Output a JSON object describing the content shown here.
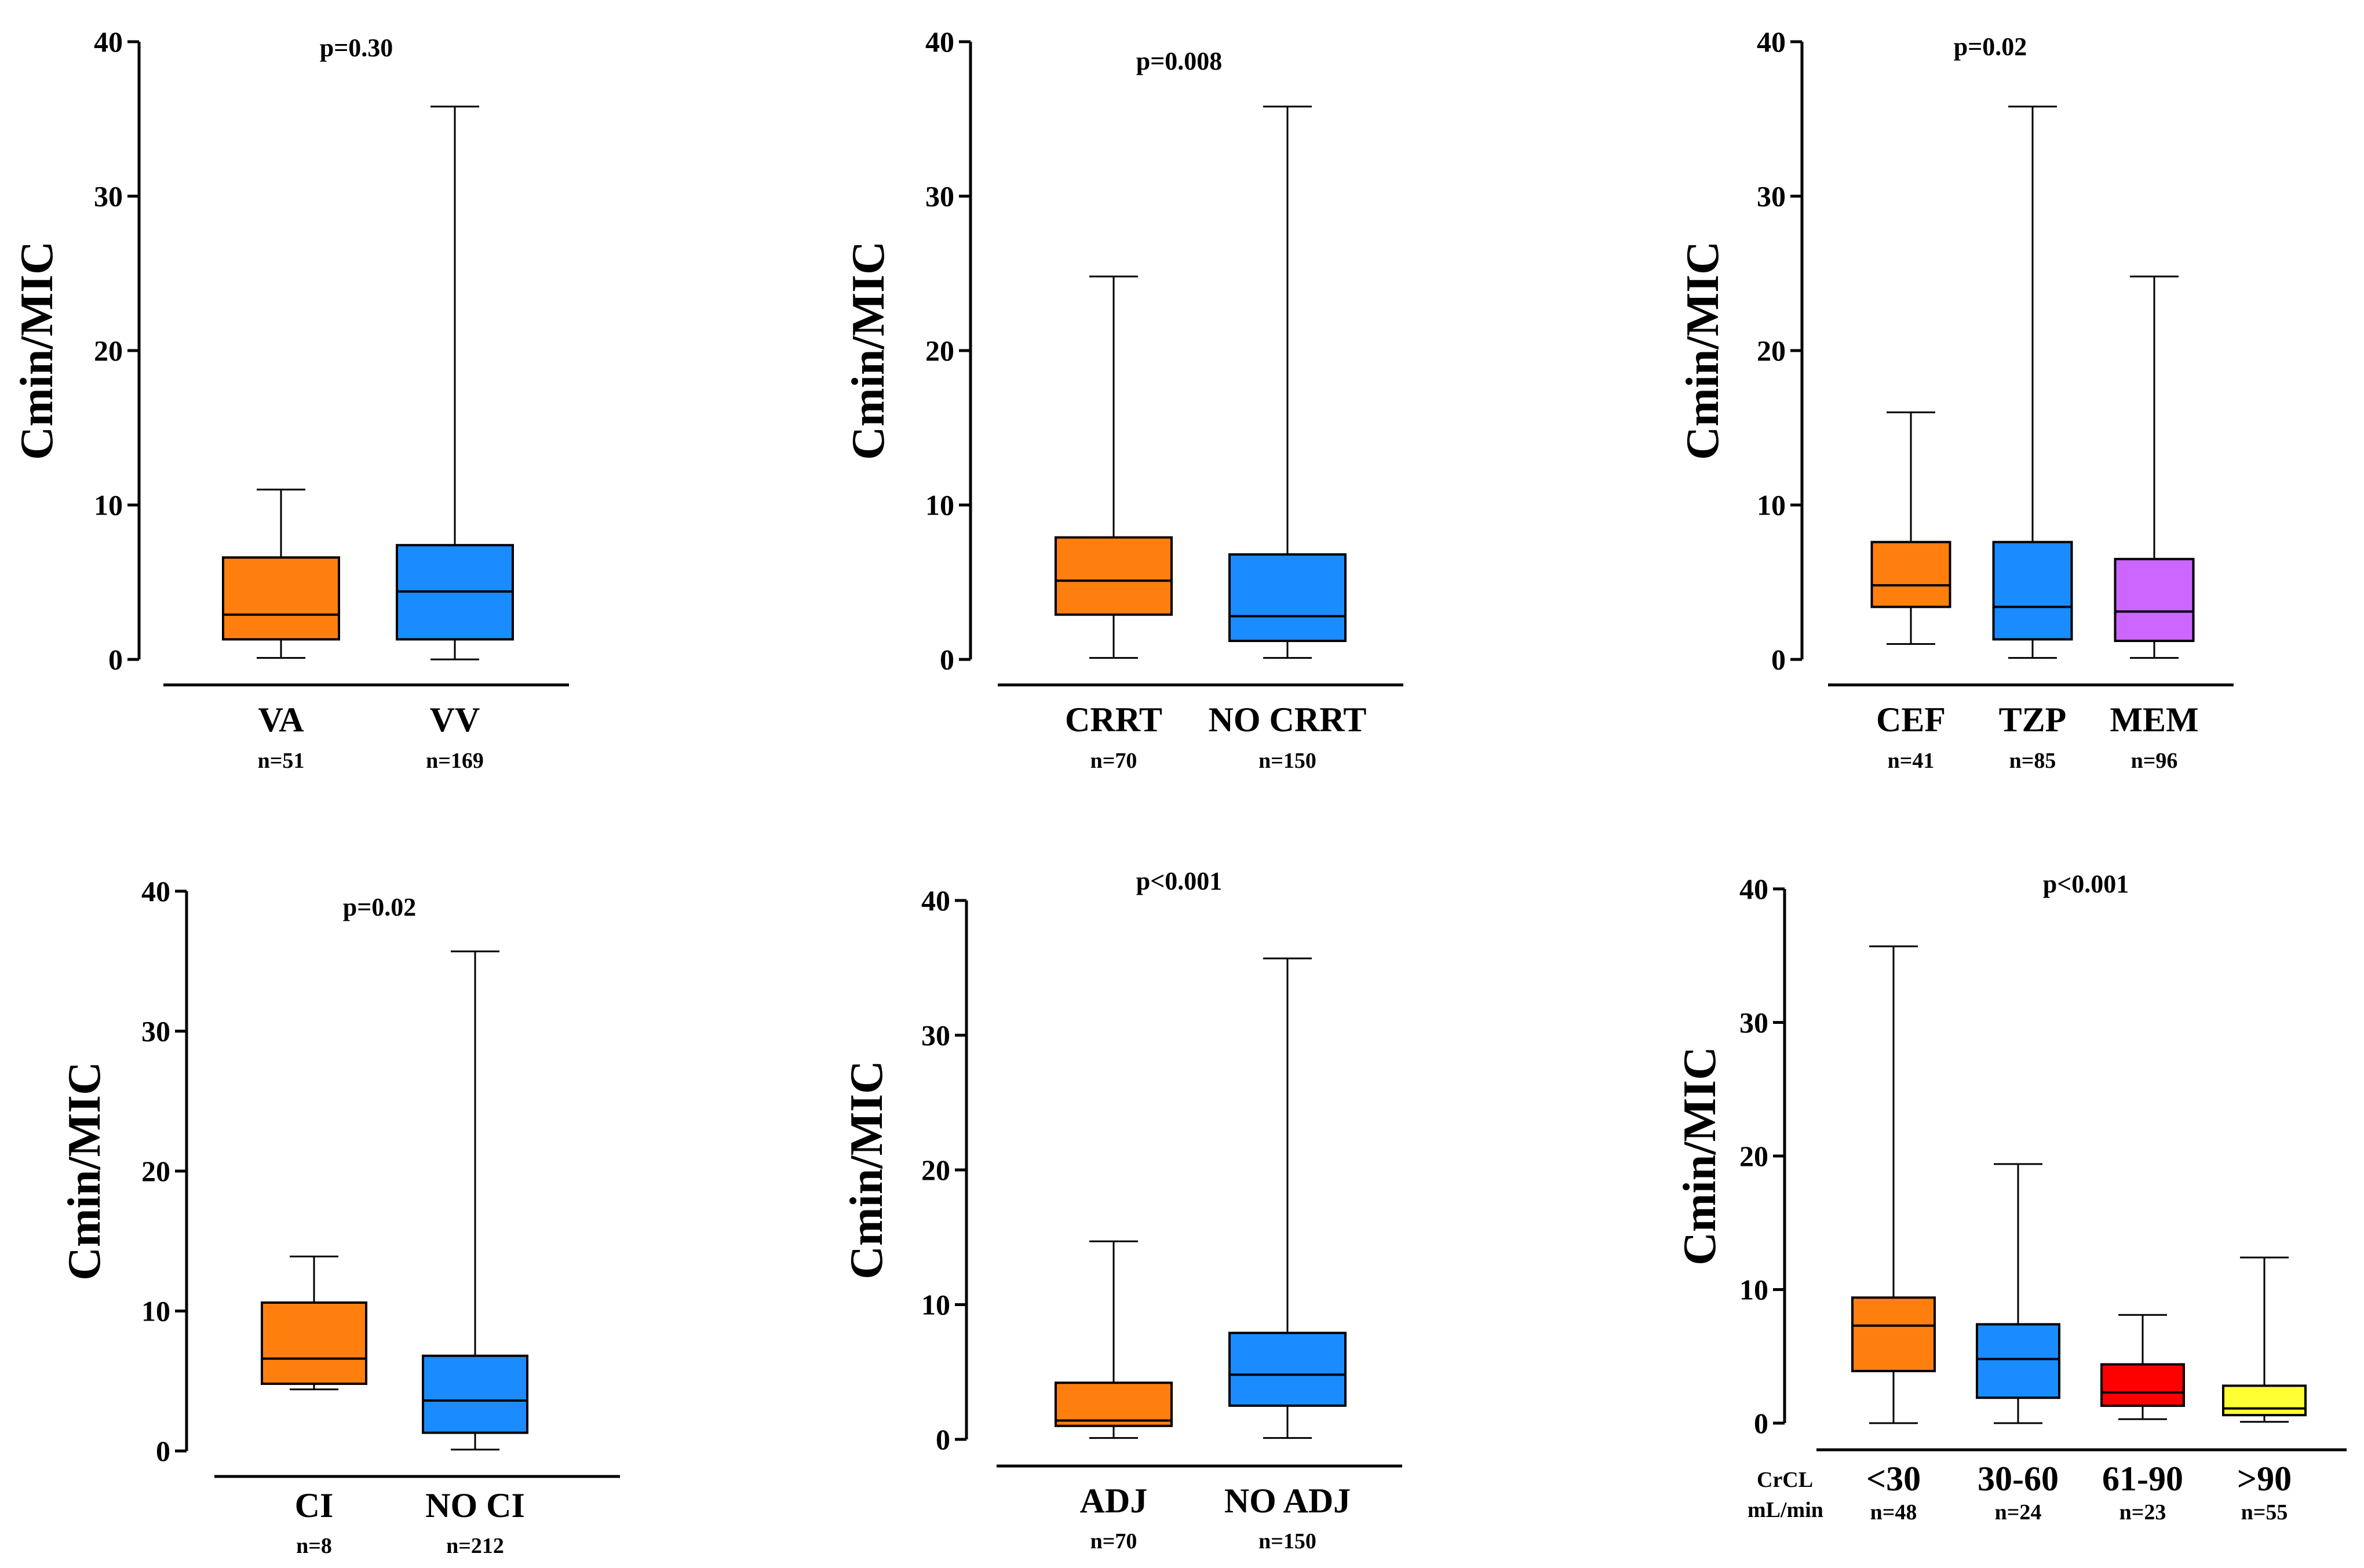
{
  "chart_data": [
    {
      "type": "box",
      "ylabel": "Cmin/MIC",
      "ylim": [
        0,
        40
      ],
      "yticks": [
        0,
        10,
        20,
        30,
        40
      ],
      "annotation": "p=0.30",
      "categories": [
        "VA",
        "VV"
      ],
      "n_labels": [
        "n=51",
        "n=169"
      ],
      "boxes": [
        {
          "category": "VA",
          "color": "#ff7f0e",
          "min": 0.1,
          "q1": 1.3,
          "median": 2.9,
          "q3": 6.6,
          "max": 11.0
        },
        {
          "category": "VV",
          "color": "#1a8cff",
          "min": 0.0,
          "q1": 1.3,
          "median": 4.4,
          "q3": 7.4,
          "max": 35.8
        }
      ]
    },
    {
      "type": "box",
      "ylabel": "Cmin/MIC",
      "ylim": [
        0,
        40
      ],
      "yticks": [
        0,
        10,
        20,
        30,
        40
      ],
      "annotation": "p=0.008",
      "categories": [
        "CRRT",
        "NO CRRT"
      ],
      "n_labels": [
        "n=70",
        "n=150"
      ],
      "boxes": [
        {
          "category": "CRRT",
          "color": "#ff7f0e",
          "min": 0.1,
          "q1": 2.9,
          "median": 5.1,
          "q3": 7.9,
          "max": 24.8
        },
        {
          "category": "NO CRRT",
          "color": "#1a8cff",
          "min": 0.1,
          "q1": 1.2,
          "median": 2.8,
          "q3": 6.8,
          "max": 35.8
        }
      ]
    },
    {
      "type": "box",
      "ylabel": "Cmin/MIC",
      "ylim": [
        0,
        40
      ],
      "yticks": [
        0,
        10,
        20,
        30,
        40
      ],
      "annotation": "p=0.02",
      "categories": [
        "CEF",
        "TZP",
        "MEM"
      ],
      "n_labels": [
        "n=41",
        "n=85",
        "n=96"
      ],
      "boxes": [
        {
          "category": "CEF",
          "color": "#ff7f0e",
          "min": 1.0,
          "q1": 3.4,
          "median": 4.8,
          "q3": 7.6,
          "max": 16.0
        },
        {
          "category": "TZP",
          "color": "#1a8cff",
          "min": 0.1,
          "q1": 1.3,
          "median": 3.4,
          "q3": 7.6,
          "max": 35.8
        },
        {
          "category": "MEM",
          "color": "#cc66ff",
          "min": 0.1,
          "q1": 1.2,
          "median": 3.1,
          "q3": 6.5,
          "max": 24.8
        }
      ]
    },
    {
      "type": "box",
      "ylabel": "Cmin/MIC",
      "ylim": [
        0,
        40
      ],
      "yticks": [
        0,
        10,
        20,
        30,
        40
      ],
      "annotation": "p=0.02",
      "categories": [
        "CI",
        "NO CI"
      ],
      "n_labels": [
        "n=8",
        "n=212"
      ],
      "boxes": [
        {
          "category": "CI",
          "color": "#ff7f0e",
          "min": 4.4,
          "q1": 4.8,
          "median": 6.6,
          "q3": 10.6,
          "max": 13.9
        },
        {
          "category": "NO CI",
          "color": "#1a8cff",
          "min": 0.1,
          "q1": 1.3,
          "median": 3.6,
          "q3": 6.8,
          "max": 35.7
        }
      ]
    },
    {
      "type": "box",
      "ylabel": "Cmin/MIC",
      "ylim": [
        0,
        40
      ],
      "yticks": [
        0,
        10,
        20,
        30,
        40
      ],
      "annotation": "p<0.001",
      "categories": [
        "ADJ",
        "NO ADJ"
      ],
      "n_labels": [
        "n=70",
        "n=150"
      ],
      "boxes": [
        {
          "category": "ADJ",
          "color": "#ff7f0e",
          "min": 0.1,
          "q1": 1.0,
          "median": 1.4,
          "q3": 4.2,
          "max": 14.7
        },
        {
          "category": "NO ADJ",
          "color": "#1a8cff",
          "min": 0.1,
          "q1": 2.5,
          "median": 4.8,
          "q3": 7.9,
          "max": 35.7
        }
      ]
    },
    {
      "type": "box",
      "ylabel": "Cmin/MIC",
      "ylim": [
        0,
        40
      ],
      "yticks": [
        0,
        10,
        20,
        30,
        40
      ],
      "annotation": "p<0.001",
      "categories": [
        "<30",
        "30-60",
        "61-90",
        ">90"
      ],
      "n_labels": [
        "n=48",
        "n=24",
        "n=23",
        "n=55"
      ],
      "x_prefix": [
        "CrCL",
        "mL/min"
      ],
      "boxes": [
        {
          "category": "<30",
          "color": "#ff7f0e",
          "min": 0.0,
          "q1": 3.9,
          "median": 7.3,
          "q3": 9.4,
          "max": 35.7
        },
        {
          "category": "30-60",
          "color": "#1a8cff",
          "min": 0.0,
          "q1": 1.9,
          "median": 4.8,
          "q3": 7.4,
          "max": 19.4
        },
        {
          "category": "61-90",
          "color": "#ff0000",
          "min": 0.3,
          "q1": 1.3,
          "median": 2.3,
          "q3": 4.4,
          "max": 8.1
        },
        {
          "category": ">90",
          "color": "#ffff33",
          "min": 0.1,
          "q1": 0.6,
          "median": 1.1,
          "q3": 2.8,
          "max": 12.4
        }
      ]
    }
  ]
}
